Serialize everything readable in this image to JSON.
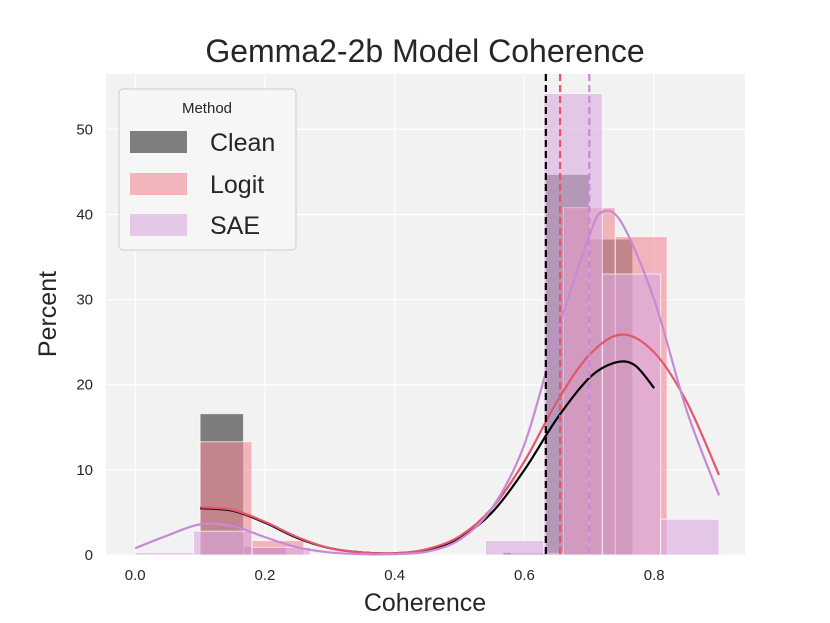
{
  "chart_data": {
    "type": "histogram",
    "title": "Gemma2-2b Model Coherence",
    "xlabel": "Coherence",
    "ylabel": "Percent",
    "xlim": [
      -0.045,
      0.94
    ],
    "ylim": [
      0,
      56.5
    ],
    "x_ticks": [
      0.0,
      0.2,
      0.4,
      0.6,
      0.8
    ],
    "x_tick_labels": [
      "0.0",
      "0.2",
      "0.4",
      "0.6",
      "0.8"
    ],
    "y_ticks": [
      0,
      10,
      20,
      30,
      40,
      50
    ],
    "y_tick_labels": [
      "0",
      "10",
      "20",
      "30",
      "40",
      "50"
    ],
    "grid": true,
    "legend": {
      "title": "Method",
      "position": "top-left",
      "entries": [
        {
          "name": "Clean",
          "color": "#555555"
        },
        {
          "name": "Logit",
          "color": "#f08a96"
        },
        {
          "name": "SAE",
          "color": "#dba9e0"
        }
      ]
    },
    "series": [
      {
        "name": "Clean",
        "color": "#555555",
        "opacity": 0.75,
        "kde_color": "#000000",
        "mean_line": 0.633,
        "bins": [
          {
            "x0": 0.1,
            "x1": 0.167,
            "value": 16.6
          },
          {
            "x0": 0.167,
            "x1": 0.233,
            "value": 1.0
          },
          {
            "x0": 0.567,
            "x1": 0.633,
            "value": 0.3
          },
          {
            "x0": 0.633,
            "x1": 0.7,
            "value": 44.7
          },
          {
            "x0": 0.7,
            "x1": 0.767,
            "value": 37.1
          }
        ],
        "kde": [
          [
            0.1,
            5.5
          ],
          [
            0.15,
            5.2
          ],
          [
            0.2,
            3.8
          ],
          [
            0.25,
            2.0
          ],
          [
            0.3,
            0.8
          ],
          [
            0.35,
            0.3
          ],
          [
            0.4,
            0.2
          ],
          [
            0.45,
            0.6
          ],
          [
            0.5,
            2.0
          ],
          [
            0.55,
            5.0
          ],
          [
            0.6,
            10.0
          ],
          [
            0.65,
            16.0
          ],
          [
            0.7,
            20.8
          ],
          [
            0.74,
            22.6
          ],
          [
            0.77,
            22.3
          ],
          [
            0.8,
            19.6
          ]
        ]
      },
      {
        "name": "Logit",
        "color": "#f08a96",
        "opacity": 0.6,
        "kde_color": "#e5566a",
        "mean_line": 0.655,
        "bins": [
          {
            "x0": 0.1,
            "x1": 0.18,
            "value": 13.3
          },
          {
            "x0": 0.18,
            "x1": 0.26,
            "value": 1.7
          },
          {
            "x0": 0.58,
            "x1": 0.66,
            "value": 0.2
          },
          {
            "x0": 0.66,
            "x1": 0.74,
            "value": 40.8
          },
          {
            "x0": 0.74,
            "x1": 0.82,
            "value": 37.4
          }
        ],
        "kde": [
          [
            0.1,
            5.6
          ],
          [
            0.15,
            5.3
          ],
          [
            0.2,
            3.9
          ],
          [
            0.25,
            2.1
          ],
          [
            0.3,
            0.8
          ],
          [
            0.35,
            0.3
          ],
          [
            0.4,
            0.2
          ],
          [
            0.45,
            0.7
          ],
          [
            0.5,
            2.2
          ],
          [
            0.55,
            5.5
          ],
          [
            0.6,
            11.0
          ],
          [
            0.65,
            18.0
          ],
          [
            0.7,
            23.5
          ],
          [
            0.75,
            25.9
          ],
          [
            0.8,
            23.8
          ],
          [
            0.85,
            18.0
          ],
          [
            0.9,
            9.4
          ]
        ]
      },
      {
        "name": "SAE",
        "color": "#dba9e0",
        "opacity": 0.6,
        "kde_color": "#c78ad6",
        "mean_line": 0.7,
        "bins": [
          {
            "x0": 0.0,
            "x1": 0.09,
            "value": 0.3
          },
          {
            "x0": 0.09,
            "x1": 0.18,
            "value": 2.8
          },
          {
            "x0": 0.18,
            "x1": 0.27,
            "value": 0.9
          },
          {
            "x0": 0.54,
            "x1": 0.63,
            "value": 1.7
          },
          {
            "x0": 0.63,
            "x1": 0.72,
            "value": 54.2
          },
          {
            "x0": 0.72,
            "x1": 0.81,
            "value": 33.0
          },
          {
            "x0": 0.81,
            "x1": 0.9,
            "value": 4.2
          }
        ],
        "kde": [
          [
            0.0,
            0.8
          ],
          [
            0.05,
            2.3
          ],
          [
            0.1,
            3.6
          ],
          [
            0.15,
            3.4
          ],
          [
            0.2,
            2.1
          ],
          [
            0.25,
            0.9
          ],
          [
            0.3,
            0.3
          ],
          [
            0.35,
            0.1
          ],
          [
            0.4,
            0.1
          ],
          [
            0.45,
            0.4
          ],
          [
            0.5,
            1.8
          ],
          [
            0.55,
            5.5
          ],
          [
            0.6,
            13.0
          ],
          [
            0.65,
            26.0
          ],
          [
            0.7,
            37.5
          ],
          [
            0.72,
            40.3
          ],
          [
            0.75,
            39.0
          ],
          [
            0.8,
            30.0
          ],
          [
            0.85,
            17.0
          ],
          [
            0.9,
            7.0
          ]
        ]
      }
    ]
  }
}
